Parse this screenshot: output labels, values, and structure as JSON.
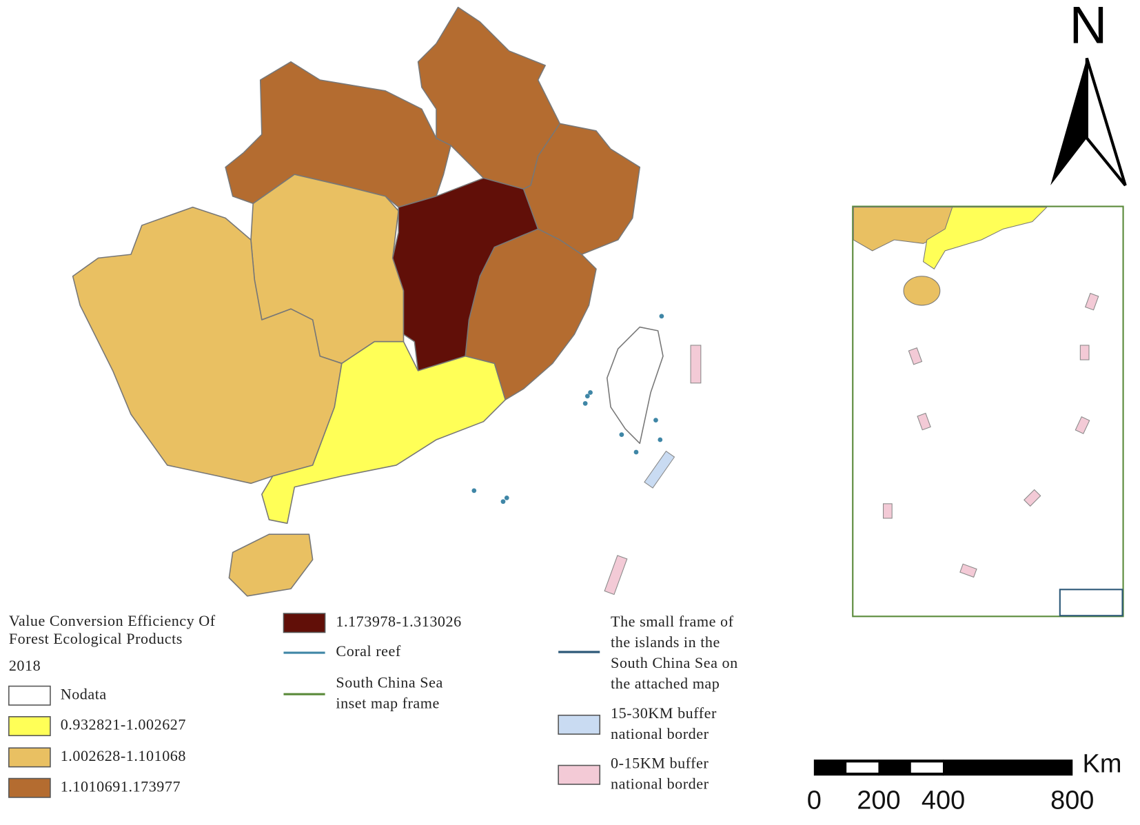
{
  "north": "N",
  "legend": {
    "title_lines": [
      "Value Conversion Efficiency Of",
      "Forest Ecological Products"
    ],
    "year": "2018",
    "items": [
      {
        "label_lines": [
          "Nodata"
        ],
        "color": "#ffffff",
        "symbol": "box"
      },
      {
        "label_lines": [
          "0.932821-1.002627"
        ],
        "color": "#ffff57",
        "symbol": "box"
      },
      {
        "label_lines": [
          "1.002628-1.101068"
        ],
        "color": "#e9c062",
        "symbol": "box"
      },
      {
        "label_lines": [
          "1.1010691.173977"
        ],
        "color": "#b46c30",
        "symbol": "box"
      },
      {
        "label_lines": [
          "1.173978-1.313026"
        ],
        "color": "#610f08",
        "symbol": "box"
      },
      {
        "label_lines": [
          "Coral reef"
        ],
        "color": "#3f86a6",
        "symbol": "line"
      },
      {
        "label_lines": [
          "South China Sea",
          "inset map frame"
        ],
        "color": "#5a8a3a",
        "symbol": "line"
      },
      {
        "label_lines": [
          "The small frame of",
          "the islands in the",
          "South China Sea on",
          "the attached map"
        ],
        "color": "#2c5878",
        "symbol": "line"
      },
      {
        "label_lines": [
          "15-30KM buffer",
          "national border"
        ],
        "color": "#c9dbf2",
        "symbol": "box"
      },
      {
        "label_lines": [
          "0-15KM buffer",
          "national border"
        ],
        "color": "#f3cad6",
        "symbol": "box"
      }
    ]
  },
  "scale_bar": {
    "unit": "Km",
    "ticks": [
      0,
      200,
      400,
      800
    ]
  }
}
